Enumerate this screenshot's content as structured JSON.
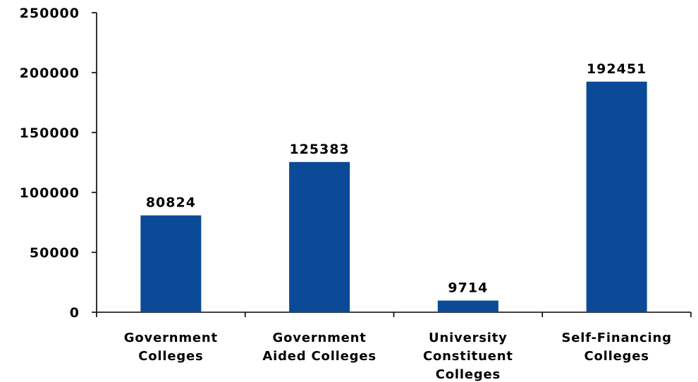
{
  "chart_data": {
    "type": "bar",
    "categories": [
      [
        "Government",
        "Colleges"
      ],
      [
        "Government",
        "Aided Colleges"
      ],
      [
        "University",
        "Constituent",
        "Colleges"
      ],
      [
        "Self-Financing",
        "Colleges"
      ]
    ],
    "values": [
      80824,
      125383,
      9714,
      192451
    ],
    "data_labels": [
      "80824",
      "125383",
      "9714",
      "192451"
    ],
    "y_ticks": [
      "0",
      "50000",
      "100000",
      "150000",
      "200000",
      "250000"
    ],
    "ylim": [
      0,
      250000
    ],
    "bar_color": "#0a4a96",
    "grid": false,
    "legend": "none"
  }
}
